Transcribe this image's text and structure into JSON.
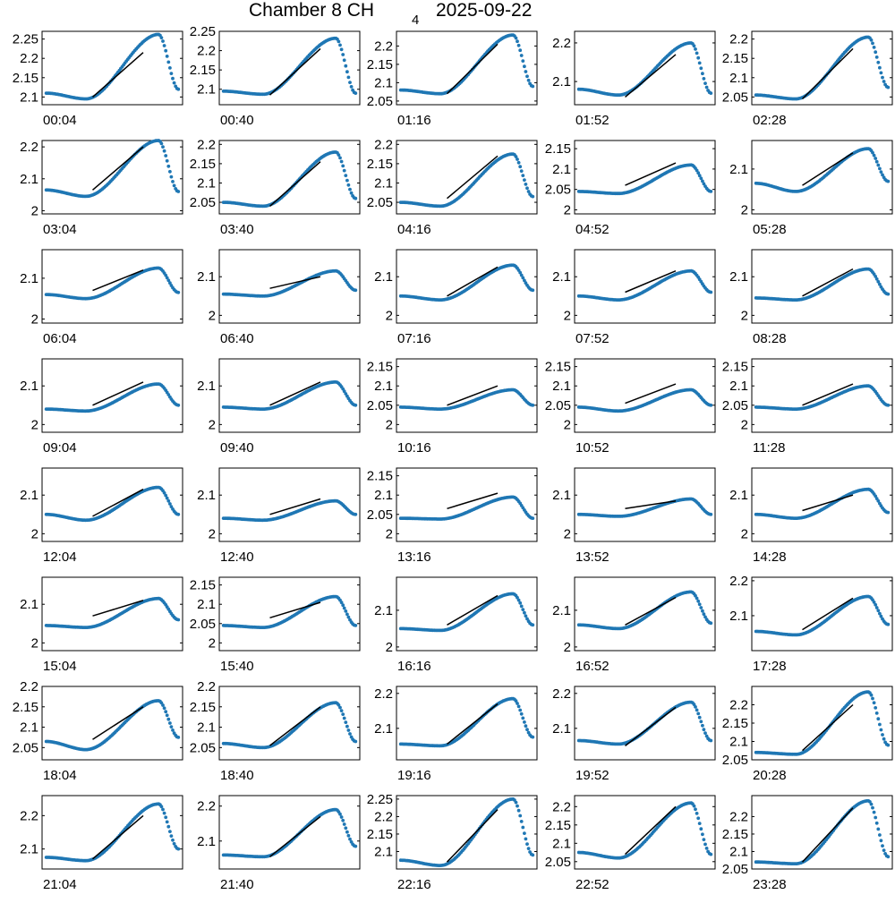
{
  "title": {
    "main": "Chamber 8 CH",
    "subscript": "4",
    "date": "2025-09-22"
  },
  "colors": {
    "points": "#1f77b4",
    "fit_line": "#000000",
    "axes": "#000000"
  },
  "chart_data": {
    "type": "scatter",
    "layout": "small-multiples",
    "rows": 8,
    "columns": 5,
    "series_description": "",
    "panels": [
      {
        "label": "00:04",
        "ylim": [
          2.08,
          2.27
        ],
        "yticks": [
          2.1,
          2.15,
          2.2,
          2.25
        ],
        "ytick_labels": [
          "2.1",
          "2.15",
          "2.2",
          "2.25"
        ],
        "start": 2.11,
        "min": 2.095,
        "peak": 2.262,
        "end": 2.12,
        "fit": [
          2.1,
          2.215
        ]
      },
      {
        "label": "00:40",
        "ylim": [
          2.06,
          2.25
        ],
        "yticks": [
          2.1,
          2.15,
          2.2,
          2.25
        ],
        "ytick_labels": [
          "2.1",
          "2.15",
          "2.2",
          "2.25"
        ],
        "start": 2.095,
        "min": 2.087,
        "peak": 2.232,
        "end": 2.09,
        "fit": [
          2.085,
          2.205
        ]
      },
      {
        "label": "01:16",
        "ylim": [
          2.04,
          2.24
        ],
        "yticks": [
          2.05,
          2.1,
          2.15,
          2.2
        ],
        "ytick_labels": [
          "2.05",
          "2.1",
          "2.15",
          "2.2"
        ],
        "start": 2.08,
        "min": 2.07,
        "peak": 2.23,
        "end": 2.09,
        "fit": [
          2.07,
          2.205
        ]
      },
      {
        "label": "01:52",
        "ylim": [
          2.04,
          2.23
        ],
        "yticks": [
          2.1,
          2.2
        ],
        "ytick_labels": [
          "2.1",
          "2.2"
        ],
        "start": 2.08,
        "min": 2.065,
        "peak": 2.2,
        "end": 2.07,
        "fit": [
          2.06,
          2.17
        ]
      },
      {
        "label": "02:28",
        "ylim": [
          2.03,
          2.22
        ],
        "yticks": [
          2.05,
          2.1,
          2.15,
          2.2
        ],
        "ytick_labels": [
          "2.05",
          "2.1",
          "2.15",
          "2.2"
        ],
        "start": 2.055,
        "min": 2.045,
        "peak": 2.205,
        "end": 2.075,
        "fit": [
          2.045,
          2.175
        ]
      },
      {
        "label": "03:04",
        "ylim": [
          1.99,
          2.22
        ],
        "yticks": [
          2,
          2.1,
          2.2
        ],
        "ytick_labels": [
          "2",
          "2.1",
          "2.2"
        ],
        "start": 2.065,
        "min": 2.045,
        "peak": 2.22,
        "end": 2.06,
        "fit": [
          2.065,
          2.2
        ]
      },
      {
        "label": "03:40",
        "ylim": [
          2.02,
          2.21
        ],
        "yticks": [
          2.05,
          2.1,
          2.15,
          2.2
        ],
        "ytick_labels": [
          "2.05",
          "2.1",
          "2.15",
          "2.2"
        ],
        "start": 2.05,
        "min": 2.04,
        "peak": 2.18,
        "end": 2.06,
        "fit": [
          2.04,
          2.155
        ]
      },
      {
        "label": "04:16",
        "ylim": [
          2.02,
          2.21
        ],
        "yticks": [
          2.05,
          2.1,
          2.15,
          2.2
        ],
        "ytick_labels": [
          "2.05",
          "2.1",
          "2.15",
          "2.2"
        ],
        "start": 2.05,
        "min": 2.04,
        "peak": 2.175,
        "end": 2.065,
        "fit": [
          2.06,
          2.17
        ]
      },
      {
        "label": "04:52",
        "ylim": [
          1.99,
          2.17
        ],
        "yticks": [
          2,
          2.05,
          2.1,
          2.15
        ],
        "ytick_labels": [
          "2",
          "2.05",
          "2.1",
          "2.15"
        ],
        "start": 2.045,
        "min": 2.04,
        "peak": 2.11,
        "end": 2.045,
        "fit": [
          2.06,
          2.115
        ]
      },
      {
        "label": "05:28",
        "ylim": [
          1.99,
          2.17
        ],
        "yticks": [
          2,
          2.1
        ],
        "ytick_labels": [
          "2",
          "2.1"
        ],
        "start": 2.065,
        "min": 2.045,
        "peak": 2.15,
        "end": 2.07,
        "fit": [
          2.06,
          2.14
        ]
      },
      {
        "label": "06:04",
        "ylim": [
          1.99,
          2.17
        ],
        "yticks": [
          2,
          2.1
        ],
        "ytick_labels": [
          "2",
          "2.1"
        ],
        "start": 2.06,
        "min": 2.05,
        "peak": 2.125,
        "end": 2.065,
        "fit": [
          2.07,
          2.12
        ]
      },
      {
        "label": "06:40",
        "ylim": [
          1.98,
          2.17
        ],
        "yticks": [
          2,
          2.1
        ],
        "ytick_labels": [
          "2",
          "2.1"
        ],
        "start": 2.055,
        "min": 2.05,
        "peak": 2.115,
        "end": 2.065,
        "fit": [
          2.07,
          2.1
        ]
      },
      {
        "label": "07:16",
        "ylim": [
          1.98,
          2.17
        ],
        "yticks": [
          2,
          2.1
        ],
        "ytick_labels": [
          "2",
          "2.1"
        ],
        "start": 2.05,
        "min": 2.04,
        "peak": 2.13,
        "end": 2.065,
        "fit": [
          2.05,
          2.125
        ]
      },
      {
        "label": "07:52",
        "ylim": [
          1.98,
          2.17
        ],
        "yticks": [
          2,
          2.1
        ],
        "ytick_labels": [
          "2",
          "2.1"
        ],
        "start": 2.05,
        "min": 2.04,
        "peak": 2.115,
        "end": 2.06,
        "fit": [
          2.06,
          2.115
        ]
      },
      {
        "label": "08:28",
        "ylim": [
          1.98,
          2.17
        ],
        "yticks": [
          2,
          2.1
        ],
        "ytick_labels": [
          "2",
          "2.1"
        ],
        "start": 2.045,
        "min": 2.04,
        "peak": 2.12,
        "end": 2.055,
        "fit": [
          2.05,
          2.12
        ]
      },
      {
        "label": "09:04",
        "ylim": [
          1.98,
          2.17
        ],
        "yticks": [
          2,
          2.1
        ],
        "ytick_labels": [
          "2",
          "2.1"
        ],
        "start": 2.04,
        "min": 2.035,
        "peak": 2.105,
        "end": 2.05,
        "fit": [
          2.05,
          2.11
        ]
      },
      {
        "label": "09:40",
        "ylim": [
          1.98,
          2.17
        ],
        "yticks": [
          2,
          2.1
        ],
        "ytick_labels": [
          "2",
          "2.1"
        ],
        "start": 2.045,
        "min": 2.04,
        "peak": 2.11,
        "end": 2.05,
        "fit": [
          2.05,
          2.11
        ]
      },
      {
        "label": "10:16",
        "ylim": [
          1.98,
          2.17
        ],
        "yticks": [
          2,
          2.05,
          2.1,
          2.15
        ],
        "ytick_labels": [
          "2",
          "2.05",
          "2.1",
          "2.15"
        ],
        "start": 2.045,
        "min": 2.04,
        "peak": 2.09,
        "end": 2.05,
        "fit": [
          2.05,
          2.1
        ]
      },
      {
        "label": "10:52",
        "ylim": [
          1.98,
          2.17
        ],
        "yticks": [
          2,
          2.05,
          2.1,
          2.15
        ],
        "ytick_labels": [
          "2",
          "2.05",
          "2.1",
          "2.15"
        ],
        "start": 2.045,
        "min": 2.035,
        "peak": 2.09,
        "end": 2.05,
        "fit": [
          2.055,
          2.105
        ]
      },
      {
        "label": "11:28",
        "ylim": [
          1.98,
          2.17
        ],
        "yticks": [
          2,
          2.05,
          2.1,
          2.15
        ],
        "ytick_labels": [
          "2",
          "2.05",
          "2.1",
          "2.15"
        ],
        "start": 2.045,
        "min": 2.04,
        "peak": 2.1,
        "end": 2.05,
        "fit": [
          2.05,
          2.105
        ]
      },
      {
        "label": "12:04",
        "ylim": [
          1.98,
          2.17
        ],
        "yticks": [
          2,
          2.1
        ],
        "ytick_labels": [
          "2",
          "2.1"
        ],
        "start": 2.05,
        "min": 2.035,
        "peak": 2.12,
        "end": 2.05,
        "fit": [
          2.045,
          2.115
        ]
      },
      {
        "label": "12:40",
        "ylim": [
          1.98,
          2.17
        ],
        "yticks": [
          2,
          2.1
        ],
        "ytick_labels": [
          "2",
          "2.1"
        ],
        "start": 2.04,
        "min": 2.035,
        "peak": 2.085,
        "end": 2.05,
        "fit": [
          2.05,
          2.09
        ]
      },
      {
        "label": "13:16",
        "ylim": [
          1.98,
          2.17
        ],
        "yticks": [
          2,
          2.05,
          2.1,
          2.15
        ],
        "ytick_labels": [
          "2",
          "2.05",
          "2.1",
          "2.15"
        ],
        "start": 2.04,
        "min": 2.038,
        "peak": 2.095,
        "end": 2.04,
        "fit": [
          2.065,
          2.105
        ]
      },
      {
        "label": "13:52",
        "ylim": [
          1.98,
          2.17
        ],
        "yticks": [
          2,
          2.1
        ],
        "ytick_labels": [
          "2",
          "2.1"
        ],
        "start": 2.05,
        "min": 2.045,
        "peak": 2.09,
        "end": 2.05,
        "fit": [
          2.065,
          2.085
        ]
      },
      {
        "label": "14:28",
        "ylim": [
          1.98,
          2.17
        ],
        "yticks": [
          2,
          2.1
        ],
        "ytick_labels": [
          "2",
          "2.1"
        ],
        "start": 2.05,
        "min": 2.04,
        "peak": 2.115,
        "end": 2.055,
        "fit": [
          2.06,
          2.1
        ]
      },
      {
        "label": "15:04",
        "ylim": [
          1.98,
          2.17
        ],
        "yticks": [
          2,
          2.1
        ],
        "ytick_labels": [
          "2",
          "2.1"
        ],
        "start": 2.045,
        "min": 2.04,
        "peak": 2.115,
        "end": 2.06,
        "fit": [
          2.07,
          2.11
        ]
      },
      {
        "label": "15:40",
        "ylim": [
          1.98,
          2.17
        ],
        "yticks": [
          2,
          2.05,
          2.1,
          2.15
        ],
        "ytick_labels": [
          "2",
          "2.05",
          "2.1",
          "2.15"
        ],
        "start": 2.045,
        "min": 2.04,
        "peak": 2.12,
        "end": 2.045,
        "fit": [
          2.065,
          2.105
        ]
      },
      {
        "label": "16:16",
        "ylim": [
          1.99,
          2.19
        ],
        "yticks": [
          2,
          2.1
        ],
        "ytick_labels": [
          "2",
          "2.1"
        ],
        "start": 2.05,
        "min": 2.045,
        "peak": 2.145,
        "end": 2.06,
        "fit": [
          2.06,
          2.14
        ]
      },
      {
        "label": "16:52",
        "ylim": [
          1.99,
          2.19
        ],
        "yticks": [
          2,
          2.1
        ],
        "ytick_labels": [
          "2",
          "2.1"
        ],
        "start": 2.06,
        "min": 2.05,
        "peak": 2.15,
        "end": 2.065,
        "fit": [
          2.06,
          2.135
        ]
      },
      {
        "label": "17:28",
        "ylim": [
          2.0,
          2.21
        ],
        "yticks": [
          2.1,
          2.2
        ],
        "ytick_labels": [
          "2.1",
          "2.2"
        ],
        "start": 2.055,
        "min": 2.045,
        "peak": 2.155,
        "end": 2.075,
        "fit": [
          2.06,
          2.15
        ]
      },
      {
        "label": "18:04",
        "ylim": [
          2.02,
          2.2
        ],
        "yticks": [
          2.05,
          2.1,
          2.15,
          2.2
        ],
        "ytick_labels": [
          "2.05",
          "2.1",
          "2.15",
          "2.2"
        ],
        "start": 2.065,
        "min": 2.045,
        "peak": 2.165,
        "end": 2.075,
        "fit": [
          2.07,
          2.15
        ]
      },
      {
        "label": "18:40",
        "ylim": [
          2.02,
          2.2
        ],
        "yticks": [
          2.05,
          2.1,
          2.15,
          2.2
        ],
        "ytick_labels": [
          "2.05",
          "2.1",
          "2.15",
          "2.2"
        ],
        "start": 2.06,
        "min": 2.05,
        "peak": 2.16,
        "end": 2.065,
        "fit": [
          2.055,
          2.15
        ]
      },
      {
        "label": "19:16",
        "ylim": [
          2.01,
          2.22
        ],
        "yticks": [
          2.1,
          2.2
        ],
        "ytick_labels": [
          "2.1",
          "2.2"
        ],
        "start": 2.055,
        "min": 2.05,
        "peak": 2.185,
        "end": 2.075,
        "fit": [
          2.055,
          2.17
        ]
      },
      {
        "label": "19:52",
        "ylim": [
          2.01,
          2.22
        ],
        "yticks": [
          2.1,
          2.2
        ],
        "ytick_labels": [
          "2.1",
          "2.2"
        ],
        "start": 2.065,
        "min": 2.055,
        "peak": 2.175,
        "end": 2.065,
        "fit": [
          2.05,
          2.16
        ]
      },
      {
        "label": "20:28",
        "ylim": [
          2.05,
          2.25
        ],
        "yticks": [
          2.05,
          2.1,
          2.15,
          2.2
        ],
        "ytick_labels": [
          "2.05",
          "2.1",
          "2.15",
          "2.2"
        ],
        "start": 2.07,
        "min": 2.065,
        "peak": 2.235,
        "end": 2.09,
        "fit": [
          2.075,
          2.2
        ]
      },
      {
        "label": "21:04",
        "ylim": [
          2.04,
          2.26
        ],
        "yticks": [
          2.1,
          2.2
        ],
        "ytick_labels": [
          "2.1",
          "2.2"
        ],
        "start": 2.075,
        "min": 2.065,
        "peak": 2.235,
        "end": 2.1,
        "fit": [
          2.07,
          2.2
        ]
      },
      {
        "label": "21:40",
        "ylim": [
          2.02,
          2.23
        ],
        "yticks": [
          2.1,
          2.2
        ],
        "ytick_labels": [
          "2.1",
          "2.2"
        ],
        "start": 2.06,
        "min": 2.055,
        "peak": 2.19,
        "end": 2.085,
        "fit": [
          2.055,
          2.17
        ]
      },
      {
        "label": "22:16",
        "ylim": [
          2.05,
          2.26
        ],
        "yticks": [
          2.1,
          2.15,
          2.2,
          2.25
        ],
        "ytick_labels": [
          "2.1",
          "2.15",
          "2.2",
          "2.25"
        ],
        "start": 2.075,
        "min": 2.06,
        "peak": 2.25,
        "end": 2.09,
        "fit": [
          2.07,
          2.22
        ]
      },
      {
        "label": "22:52",
        "ylim": [
          2.03,
          2.23
        ],
        "yticks": [
          2.05,
          2.1,
          2.15,
          2.2
        ],
        "ytick_labels": [
          "2.05",
          "2.1",
          "2.15",
          "2.2"
        ],
        "start": 2.075,
        "min": 2.06,
        "peak": 2.21,
        "end": 2.07,
        "fit": [
          2.07,
          2.2
        ]
      },
      {
        "label": "23:28",
        "ylim": [
          2.05,
          2.26
        ],
        "yticks": [
          2.05,
          2.1,
          2.15,
          2.2
        ],
        "ytick_labels": [
          "2.05",
          "2.1",
          "2.15",
          "2.2"
        ],
        "start": 2.07,
        "min": 2.065,
        "peak": 2.245,
        "end": 2.085,
        "fit": [
          2.07,
          2.225
        ]
      }
    ]
  }
}
